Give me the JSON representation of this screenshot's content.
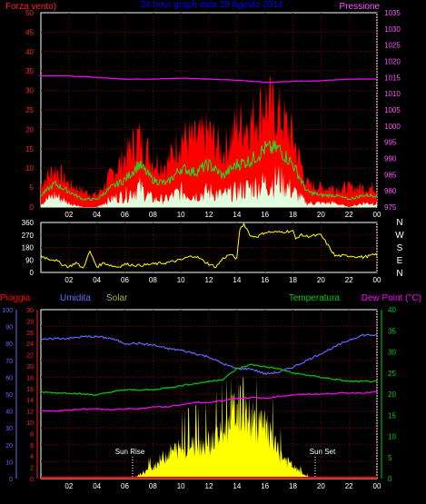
{
  "colors": {
    "background": "#000000",
    "frame": "#ffffff",
    "grid": "#7a0000",
    "wind_max": "#ff0000",
    "wind_avg": "#22dd22",
    "wind_min": "#ddffdd",
    "pressure": "#ff00ff",
    "title": "#0000ff",
    "direction": "#ffff00",
    "rain": "#ff0000",
    "humidity": "#6666ff",
    "solar": "#ffff00",
    "solar_label": "#aaaa55",
    "temperature": "#00cc00",
    "dew_point": "#ff00ff",
    "axis_green": "#00cc00",
    "axis_red": "#ff2222",
    "axis_pink": "#ff55ff",
    "axis_blue": "#6666ff",
    "sun_label": "#ffffff"
  },
  "chart_data": [
    {
      "id": "wind_pressure",
      "type": "line",
      "title": "24 hour graph data  19 Agosto 2014",
      "left_label": "Forza vento)",
      "right_label": "Pressione",
      "x_ticks": [
        "02",
        "04",
        "06",
        "08",
        "10",
        "12",
        "14",
        "16",
        "18",
        "20",
        "22",
        "00"
      ],
      "left_ticks": [
        "0",
        "5",
        "10",
        "15",
        "20",
        "25",
        "30",
        "35",
        "40",
        "45",
        "50"
      ],
      "right_ticks": [
        "975",
        "980",
        "985",
        "990",
        "995",
        "1000",
        "1005",
        "1010",
        "1015",
        "1020",
        "1025",
        "1030",
        "1035"
      ],
      "ylim_left": [
        0,
        50
      ],
      "ylim_right": [
        975,
        1035
      ],
      "series": [
        {
          "key": "wind_max",
          "hours": [
            0,
            1,
            2,
            3,
            4,
            5,
            6,
            7,
            8,
            9,
            10,
            11,
            12,
            13,
            14,
            15,
            16,
            17,
            18,
            19,
            20,
            21,
            22,
            23,
            24
          ],
          "values": [
            6,
            10,
            6,
            4,
            3,
            8,
            13,
            18,
            12,
            11,
            18,
            17,
            19,
            14,
            21,
            22,
            27,
            24,
            18,
            6,
            5,
            5,
            5,
            5,
            5
          ]
        },
        {
          "key": "wind_avg",
          "hours": [
            0,
            1,
            2,
            3,
            4,
            5,
            6,
            7,
            8,
            9,
            10,
            11,
            12,
            13,
            14,
            15,
            16,
            17,
            18,
            19,
            20,
            21,
            22,
            23,
            24
          ],
          "values": [
            3,
            6,
            4,
            2,
            2,
            5,
            7,
            11,
            7,
            6,
            10,
            9,
            11,
            8,
            11,
            12,
            15,
            15,
            11,
            4,
            3,
            3,
            2,
            3,
            3
          ]
        },
        {
          "key": "wind_min",
          "hours": [
            0,
            1,
            2,
            3,
            4,
            5,
            6,
            7,
            8,
            9,
            10,
            11,
            12,
            13,
            14,
            15,
            16,
            17,
            18,
            19,
            20,
            21,
            22,
            23,
            24
          ],
          "values": [
            1,
            3,
            1,
            0,
            0,
            2,
            3,
            5,
            2,
            2,
            4,
            3,
            4,
            3,
            4,
            5,
            6,
            7,
            4,
            1,
            1,
            1,
            0,
            1,
            1
          ]
        },
        {
          "key": "pressure",
          "hours": [
            0,
            2,
            4,
            6,
            8,
            10,
            12,
            14,
            16,
            18,
            20,
            22,
            24
          ],
          "values": [
            1015.5,
            1015.5,
            1015,
            1014.5,
            1014.5,
            1014.8,
            1014.5,
            1014.2,
            1013.5,
            1013.8,
            1014,
            1014.5,
            1014.5
          ]
        }
      ]
    },
    {
      "id": "wind_direction",
      "type": "line",
      "title": "",
      "x_ticks": [
        "02",
        "04",
        "06",
        "08",
        "10",
        "12",
        "14",
        "16",
        "18",
        "20",
        "22",
        "00"
      ],
      "y_ticks": [
        "0",
        "90",
        "180",
        "270",
        "360"
      ],
      "direction_labels": [
        "N",
        "W",
        "S",
        "E",
        "N"
      ],
      "ylim": [
        0,
        360
      ],
      "series": [
        {
          "key": "direction",
          "hours": [
            0,
            0.5,
            1,
            1.5,
            2,
            2.5,
            3,
            3.5,
            4,
            4.5,
            5,
            5.5,
            6,
            7,
            8,
            9,
            10,
            10.5,
            11,
            12,
            12.5,
            13,
            13.5,
            14,
            14.2,
            14.5,
            15,
            15.5,
            16,
            17,
            18,
            18.2,
            18.5,
            19,
            20,
            21,
            22,
            23,
            24
          ],
          "values": [
            120,
            100,
            90,
            60,
            40,
            70,
            30,
            150,
            40,
            70,
            50,
            40,
            60,
            50,
            60,
            70,
            90,
            110,
            120,
            60,
            40,
            100,
            130,
            100,
            310,
            350,
            260,
            260,
            290,
            290,
            300,
            240,
            270,
            260,
            270,
            120,
            120,
            110,
            130
          ]
        }
      ]
    },
    {
      "id": "atmosphere",
      "type": "line",
      "title": "",
      "left_labels": [
        "Pioggia",
        "Umidita",
        "Solar"
      ],
      "right_labels": [
        "Temperatura",
        "Dew Point (°C)"
      ],
      "annotations": [
        "Sun Rise",
        "Sun Set"
      ],
      "x_ticks": [
        "02",
        "04",
        "06",
        "08",
        "10",
        "12",
        "14",
        "16",
        "18",
        "20",
        "22",
        "00"
      ],
      "humidity_ticks": [
        "0",
        "10",
        "20",
        "30",
        "40",
        "50",
        "60",
        "70",
        "80",
        "90",
        "100"
      ],
      "rain_ticks": [
        "0",
        "2",
        "4",
        "6",
        "8",
        "10",
        "12",
        "14",
        "16",
        "18",
        "20",
        "22",
        "24",
        "26",
        "28",
        "30"
      ],
      "temp_ticks": [
        "0",
        "5",
        "10",
        "15",
        "20",
        "25",
        "30",
        "35",
        "40"
      ],
      "ylim_humidity": [
        0,
        100
      ],
      "ylim_rain": [
        0,
        30
      ],
      "ylim_temp": [
        0,
        40
      ],
      "series": [
        {
          "key": "humidity",
          "hours": [
            0,
            1,
            2,
            3,
            4,
            5,
            6,
            7,
            8,
            9,
            10,
            11,
            12,
            13,
            14,
            15,
            16,
            17,
            18,
            19,
            20,
            21,
            22,
            23,
            24
          ],
          "values": [
            82,
            83,
            83,
            84,
            84,
            83,
            80,
            80,
            79,
            77,
            76,
            74,
            72,
            68,
            65,
            65,
            62,
            63,
            66,
            70,
            74,
            78,
            82,
            85,
            85
          ]
        },
        {
          "key": "temperature",
          "hours": [
            0,
            1,
            2,
            3,
            4,
            5,
            6,
            7,
            8,
            9,
            10,
            11,
            12,
            13,
            14,
            15,
            16,
            17,
            18,
            19,
            20,
            21,
            22,
            23,
            24
          ],
          "values": [
            20.5,
            20.3,
            20.3,
            20,
            19.8,
            20.5,
            21,
            21,
            21,
            21.5,
            22,
            22.5,
            23,
            23.5,
            26,
            27,
            26.5,
            26,
            25,
            24.5,
            24,
            23.5,
            23,
            23,
            23
          ]
        },
        {
          "key": "dew_point",
          "hours": [
            0,
            1,
            2,
            3,
            4,
            5,
            6,
            7,
            8,
            9,
            10,
            11,
            12,
            13,
            14,
            15,
            16,
            17,
            18,
            19,
            20,
            21,
            22,
            23,
            24
          ],
          "values": [
            16,
            16,
            16.2,
            16.5,
            16.5,
            16.3,
            16.5,
            16.5,
            17,
            17,
            17.5,
            18,
            18,
            18.5,
            19,
            19.2,
            19,
            19.5,
            19.8,
            20,
            20,
            20.2,
            20.3,
            20.3,
            20.5
          ]
        },
        {
          "key": "solar",
          "hours": [
            6.5,
            7,
            7.5,
            8,
            8.5,
            9,
            9.5,
            10,
            10.5,
            11,
            11.5,
            12,
            12.5,
            13,
            13.5,
            14,
            14.5,
            15,
            15.5,
            16,
            16.5,
            17,
            17.5,
            18,
            18.5,
            19,
            19.5
          ],
          "values": [
            0,
            3,
            6,
            10,
            15,
            20,
            23,
            25,
            26,
            27,
            28,
            30,
            33,
            36,
            45,
            60,
            55,
            48,
            45,
            42,
            32,
            20,
            15,
            10,
            5,
            2,
            0
          ]
        },
        {
          "key": "rain",
          "hours": [
            0,
            24
          ],
          "values": [
            0,
            0
          ]
        }
      ]
    }
  ]
}
